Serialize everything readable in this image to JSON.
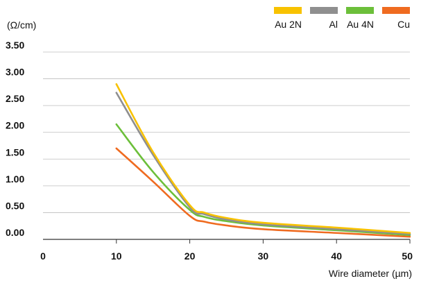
{
  "chart_data": {
    "type": "line",
    "title": "",
    "xlabel": "Wire diameter (µm)",
    "ylabel": "(Ω/cm)",
    "xlim": [
      0,
      50
    ],
    "ylim": [
      0,
      3.5
    ],
    "x_ticks": [
      0,
      10,
      20,
      30,
      40,
      50
    ],
    "x_tick_labels": [
      "0",
      "10",
      "20",
      "30",
      "40",
      "50"
    ],
    "y_ticks": [
      0,
      0.5,
      1.0,
      1.5,
      2.0,
      2.5,
      3.0,
      3.5
    ],
    "y_tick_labels": [
      "0.00",
      "0.50",
      "1.00",
      "1.50",
      "2.00",
      "2.50",
      "3.00",
      "3.50"
    ],
    "grid": "horizontal",
    "legend_position": "top-right",
    "x": [
      10,
      15,
      20,
      22,
      25,
      30,
      40,
      50
    ],
    "series": [
      {
        "name": "Au 2N",
        "color": "#f8c200",
        "values": [
          2.9,
          1.63,
          0.64,
          0.5,
          0.4,
          0.31,
          0.22,
          0.12
        ]
      },
      {
        "name": "Al",
        "color": "#8f8f8f",
        "values": [
          2.74,
          1.58,
          0.6,
          0.47,
          0.37,
          0.28,
          0.19,
          0.1
        ]
      },
      {
        "name": "Au 4N",
        "color": "#6cbf3a",
        "values": [
          2.15,
          1.26,
          0.55,
          0.42,
          0.34,
          0.26,
          0.17,
          0.08
        ]
      },
      {
        "name": "Cu",
        "color": "#ef6b20",
        "values": [
          1.7,
          1.08,
          0.44,
          0.33,
          0.26,
          0.19,
          0.12,
          0.05
        ]
      }
    ]
  }
}
